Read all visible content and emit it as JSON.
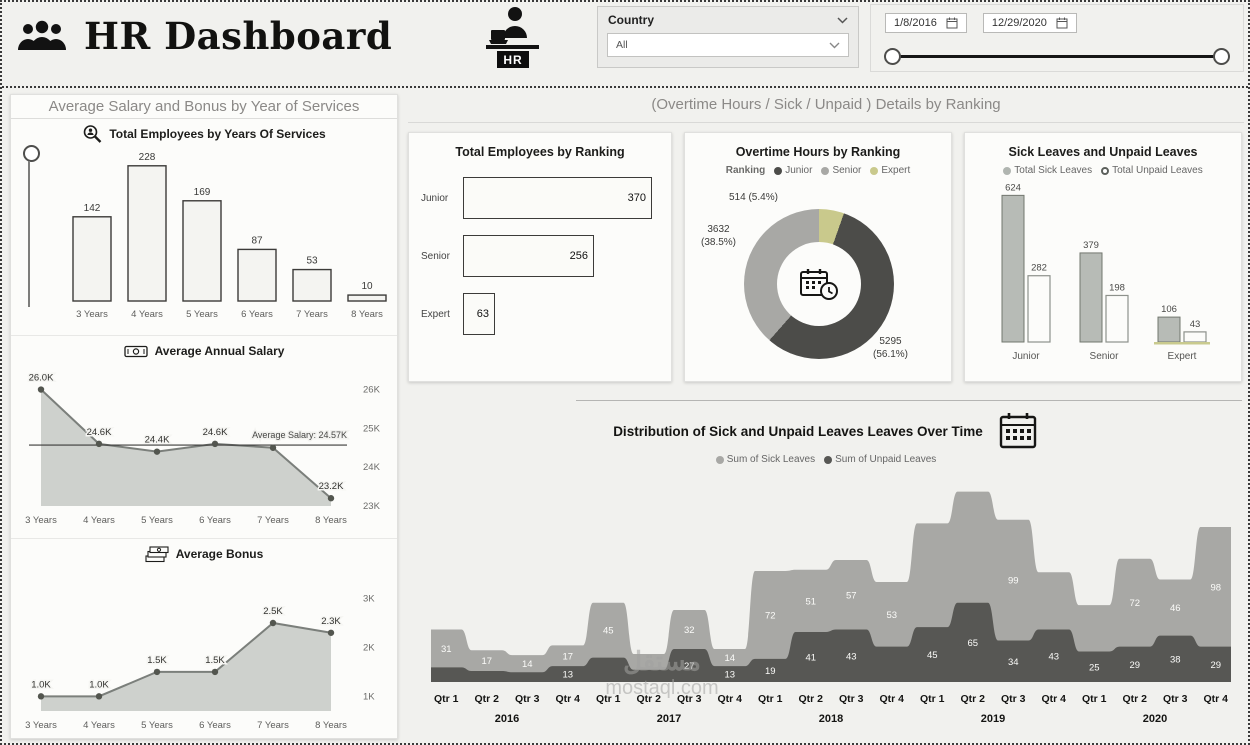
{
  "header": {
    "title": "HR Dashboard",
    "hr_badge": "HR",
    "country": {
      "label": "Country",
      "value": "All"
    },
    "dates": {
      "start": "1/8/2016",
      "end": "12/29/2020"
    }
  },
  "left_panel": {
    "title": "Average Salary and Bonus by Year of Services"
  },
  "right_panel": {
    "title": "(Overtime Hours / Sick / Unpaid ) Details by Ranking"
  },
  "watermark": {
    "line1": "مستقل",
    "line2": "mostaql.com"
  },
  "chart_data": [
    {
      "id": "employees_by_years",
      "type": "bar",
      "title": "Total Employees by Years Of Services",
      "categories": [
        "3 Years",
        "4 Years",
        "5 Years",
        "6 Years",
        "7 Years",
        "8 Years"
      ],
      "values": [
        142,
        228,
        169,
        87,
        53,
        10
      ]
    },
    {
      "id": "average_salary",
      "type": "area",
      "title": "Average Annual Salary",
      "categories": [
        "3 Years",
        "4 Years",
        "5 Years",
        "6 Years",
        "7 Years",
        "8 Years"
      ],
      "values": [
        26000,
        24600,
        24400,
        24600,
        24500,
        23200
      ],
      "point_labels": [
        "26.0K",
        "24.6K",
        "24.4K",
        "24.6K",
        "",
        "23.2K"
      ],
      "average_line": {
        "value": 24570,
        "label": "Average Salary: 24.57K"
      },
      "y_ticks": [
        {
          "label": "26K",
          "value": 26000
        },
        {
          "label": "25K",
          "value": 25000
        },
        {
          "label": "24K",
          "value": 24000
        },
        {
          "label": "23K",
          "value": 23000
        }
      ],
      "ylim": [
        23000,
        26400
      ]
    },
    {
      "id": "average_bonus",
      "type": "line",
      "title": "Average Bonus",
      "categories": [
        "3 Years",
        "4 Years",
        "5 Years",
        "6 Years",
        "7 Years",
        "8 Years"
      ],
      "values": [
        1000,
        1000,
        1500,
        1500,
        2500,
        2300
      ],
      "point_labels": [
        "1.0K",
        "1.0K",
        "1.5K",
        "1.5K",
        "2.5K",
        "2.3K"
      ],
      "y_ticks": [
        {
          "label": "3K",
          "value": 3000
        },
        {
          "label": "2K",
          "value": 2000
        },
        {
          "label": "1K",
          "value": 1000
        }
      ],
      "ylim": [
        700,
        3400
      ]
    },
    {
      "id": "employees_by_ranking",
      "type": "bar",
      "orientation": "horizontal",
      "title": "Total Employees by Ranking",
      "categories": [
        "Junior",
        "Senior",
        "Expert"
      ],
      "values": [
        370,
        256,
        63
      ]
    },
    {
      "id": "overtime_by_ranking",
      "type": "pie",
      "title": "Overtime Hours by Ranking",
      "legend_title": "Ranking",
      "slices": [
        {
          "name": "Junior",
          "value": 5295,
          "pct": 56.1,
          "pct_label": "(56.1%)",
          "color": "#4c4c49"
        },
        {
          "name": "Senior",
          "value": 3632,
          "pct": 38.5,
          "pct_label": "(38.5%)",
          "color": "#a8a8a5"
        },
        {
          "name": "Expert",
          "value": 514,
          "pct": 5.4,
          "pct_label": "(5.4%)",
          "color": "#c9c98c"
        }
      ]
    },
    {
      "id": "sick_unpaid_by_ranking",
      "type": "bar",
      "grouped": true,
      "title": "Sick Leaves and Unpaid Leaves",
      "categories": [
        "Junior",
        "Senior",
        "Expert"
      ],
      "series": [
        {
          "name": "Total Sick Leaves",
          "color": "#b0b5b0",
          "values": [
            624,
            379,
            106
          ]
        },
        {
          "name": "Total Unpaid Leaves",
          "color": "#5c605c",
          "values": [
            282,
            198,
            43
          ]
        }
      ]
    },
    {
      "id": "leaves_over_time",
      "type": "area",
      "stacked": true,
      "title": "Distribution of Sick and Unpaid Leaves Leaves Over Time",
      "quarters": [
        "Qtr 1",
        "Qtr 2",
        "Qtr 3",
        "Qtr 4"
      ],
      "years": [
        "2016",
        "2017",
        "2018",
        "2019",
        "2020"
      ],
      "series": [
        {
          "name": "Sum of Sick Leaves",
          "color": "#a8a8a5",
          "values": [
            31,
            17,
            14,
            17,
            45,
            13,
            32,
            14,
            72,
            51,
            57,
            53,
            85,
            91,
            99,
            47,
            38,
            72,
            46,
            98
          ],
          "labels": [
            31,
            17,
            14,
            17,
            45,
            null,
            32,
            14,
            72,
            51,
            57,
            53,
            null,
            null,
            99,
            null,
            null,
            72,
            46,
            98
          ]
        },
        {
          "name": "Sum of Unpaid Leaves",
          "color": "#575754",
          "values": [
            12,
            9,
            8,
            13,
            20,
            10,
            27,
            13,
            19,
            41,
            43,
            29,
            45,
            65,
            34,
            43,
            25,
            29,
            38,
            29
          ],
          "labels": [
            null,
            null,
            null,
            13,
            null,
            null,
            27,
            13,
            19,
            41,
            43,
            null,
            45,
            65,
            34,
            43,
            25,
            29,
            38,
            29
          ]
        }
      ]
    }
  ]
}
